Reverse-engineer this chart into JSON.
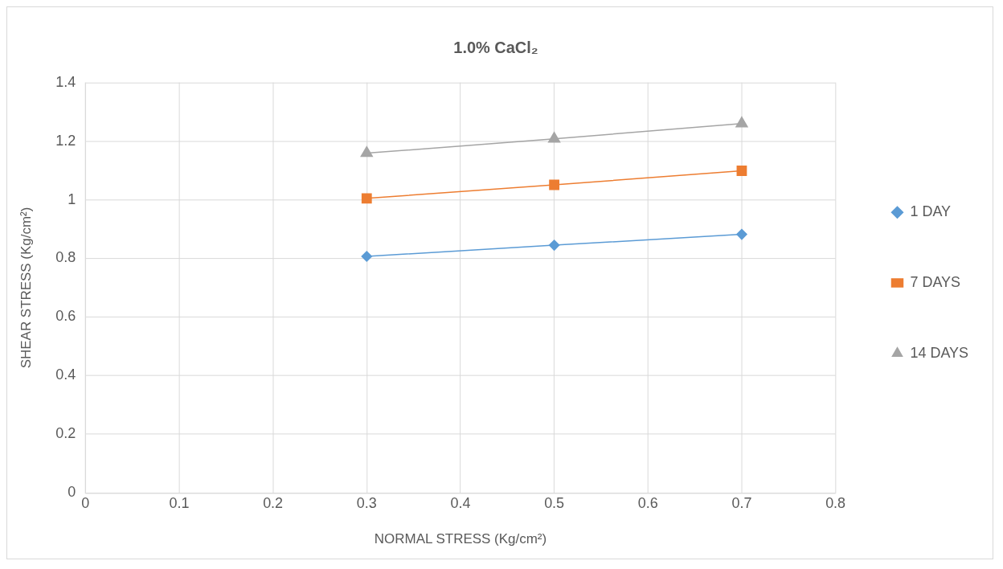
{
  "chart_data": {
    "type": "line",
    "title": "1.0% CaCl₂",
    "xlabel": "NORMAL STRESS (Kg/cm²)",
    "ylabel": "SHEAR STRESS (Kg/cm²)",
    "xlim": [
      0,
      0.8
    ],
    "xticks": [
      0,
      0.1,
      0.2,
      0.3,
      0.4,
      0.5,
      0.6,
      0.7,
      0.8
    ],
    "ylim": [
      0,
      1.4
    ],
    "yticks": [
      0,
      0.2,
      0.4,
      0.6,
      0.8,
      1,
      1.2,
      1.4
    ],
    "grid": true,
    "legend": "right",
    "line_style": "solid",
    "series": [
      {
        "name": "1 DAY",
        "color": "#5b9bd5",
        "marker": "diamond",
        "x": [
          0.3,
          0.5,
          0.7
        ],
        "values": [
          0.807,
          0.845,
          0.882
        ]
      },
      {
        "name": "7 DAYS",
        "color": "#ed7d31",
        "marker": "square",
        "x": [
          0.3,
          0.5,
          0.7
        ],
        "values": [
          1.005,
          1.051,
          1.099
        ]
      },
      {
        "name": "14 DAYS",
        "color": "#a5a5a5",
        "marker": "triangle",
        "x": [
          0.3,
          0.5,
          0.7
        ],
        "values": [
          1.159,
          1.208,
          1.26
        ]
      }
    ]
  }
}
